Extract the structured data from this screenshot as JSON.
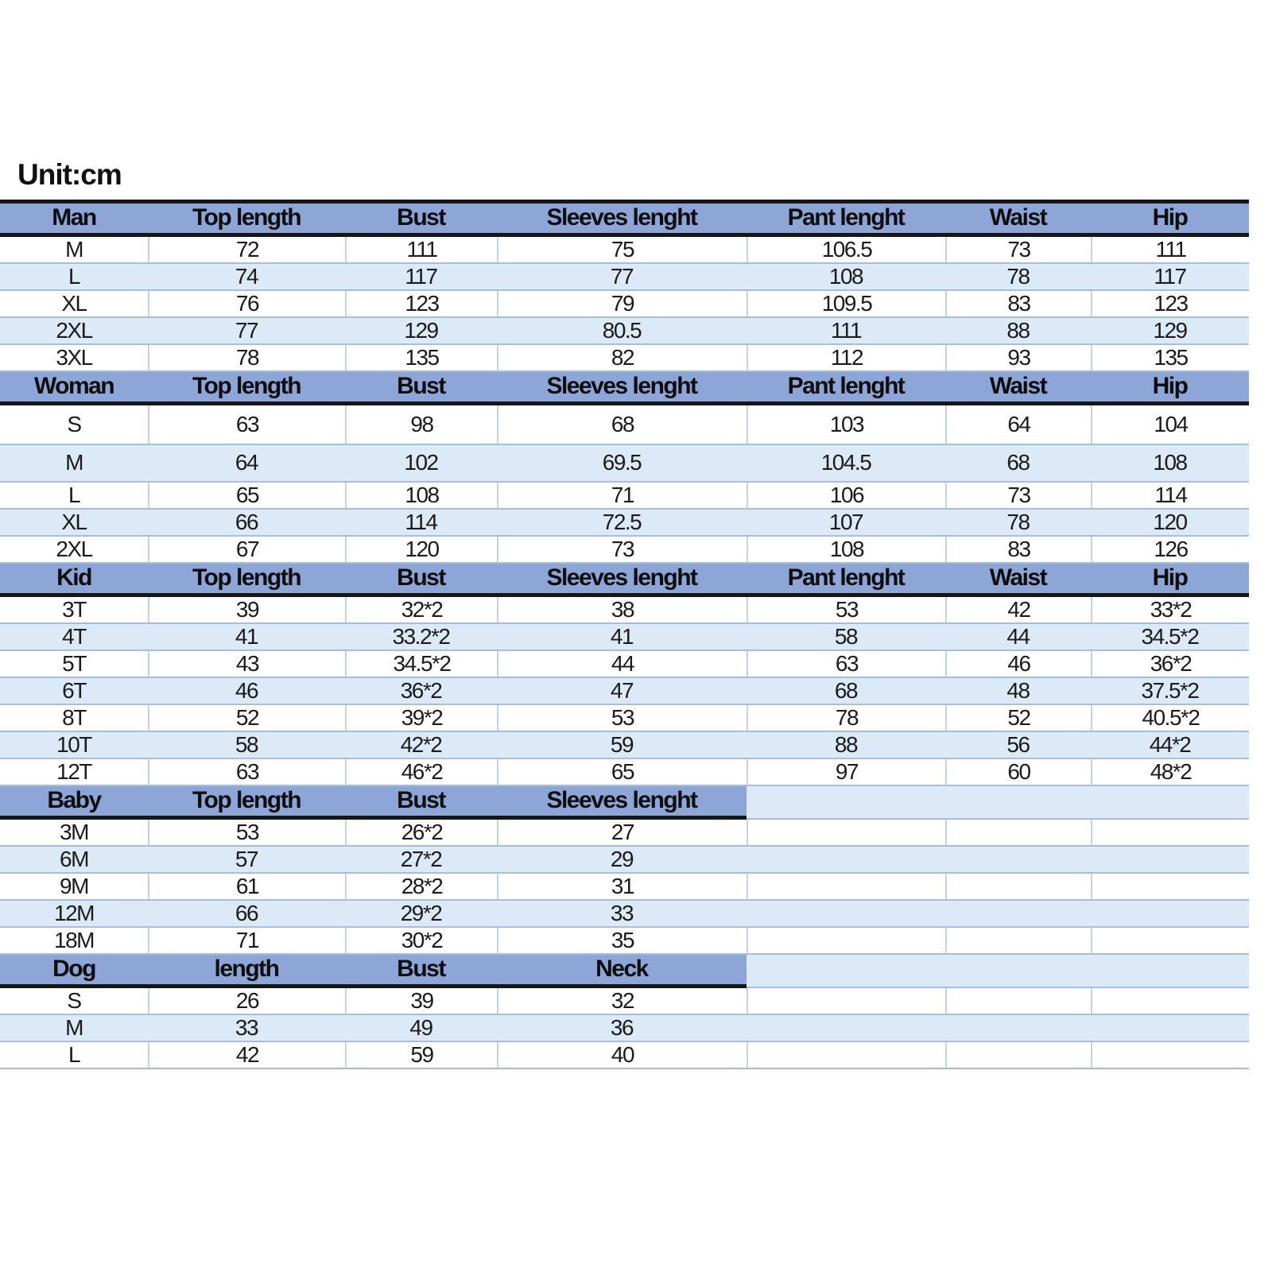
{
  "unit_label": "Unit:cm",
  "colors": {
    "header_bg": "#8da5d7",
    "row_alt_bg": "#dce9f6",
    "row_bg": "#ffffff",
    "grid_line": "#a6bedd",
    "section_border": "#161616",
    "text": "#1b1b1b"
  },
  "sections": [
    {
      "name": "Man",
      "headers": [
        "Man",
        "Top length",
        "Bust",
        "Sleeves lenght",
        "Pant lenght",
        "Waist",
        "Hip"
      ],
      "rows": [
        [
          "M",
          "72",
          "111",
          "75",
          "106.5",
          "73",
          "111"
        ],
        [
          "L",
          "74",
          "117",
          "77",
          "108",
          "78",
          "117"
        ],
        [
          "XL",
          "76",
          "123",
          "79",
          "109.5",
          "83",
          "123"
        ],
        [
          "2XL",
          "77",
          "129",
          "80.5",
          "111",
          "88",
          "129"
        ],
        [
          "3XL",
          "78",
          "135",
          "82",
          "112",
          "93",
          "135"
        ]
      ]
    },
    {
      "name": "Woman",
      "headers": [
        "Woman",
        "Top length",
        "Bust",
        "Sleeves lenght",
        "Pant lenght",
        "Waist",
        "Hip"
      ],
      "rows": [
        [
          "S",
          "63",
          "98",
          "68",
          "103",
          "64",
          "104"
        ],
        [
          "M",
          "64",
          "102",
          "69.5",
          "104.5",
          "68",
          "108"
        ],
        [
          "L",
          "65",
          "108",
          "71",
          "106",
          "73",
          "114"
        ],
        [
          "XL",
          "66",
          "114",
          "72.5",
          "107",
          "78",
          "120"
        ],
        [
          "2XL",
          "67",
          "120",
          "73",
          "108",
          "83",
          "126"
        ]
      ]
    },
    {
      "name": "Kid",
      "headers": [
        "Kid",
        "Top length",
        "Bust",
        "Sleeves lenght",
        "Pant lenght",
        "Waist",
        "Hip"
      ],
      "rows": [
        [
          "3T",
          "39",
          "32*2",
          "38",
          "53",
          "42",
          "33*2"
        ],
        [
          "4T",
          "41",
          "33.2*2",
          "41",
          "58",
          "44",
          "34.5*2"
        ],
        [
          "5T",
          "43",
          "34.5*2",
          "44",
          "63",
          "46",
          "36*2"
        ],
        [
          "6T",
          "46",
          "36*2",
          "47",
          "68",
          "48",
          "37.5*2"
        ],
        [
          "8T",
          "52",
          "39*2",
          "53",
          "78",
          "52",
          "40.5*2"
        ],
        [
          "10T",
          "58",
          "42*2",
          "59",
          "88",
          "56",
          "44*2"
        ],
        [
          "12T",
          "63",
          "46*2",
          "65",
          "97",
          "60",
          "48*2"
        ]
      ]
    },
    {
      "name": "Baby",
      "headers": [
        "Baby",
        "Top length",
        "Bust",
        "Sleeves lenght"
      ],
      "rows": [
        [
          "3M",
          "53",
          "26*2",
          "27"
        ],
        [
          "6M",
          "57",
          "27*2",
          "29"
        ],
        [
          "9M",
          "61",
          "28*2",
          "31"
        ],
        [
          "12M",
          "66",
          "29*2",
          "33"
        ],
        [
          "18M",
          "71",
          "30*2",
          "35"
        ]
      ]
    },
    {
      "name": "Dog",
      "headers": [
        "Dog",
        "length",
        "Bust",
        "Neck"
      ],
      "rows": [
        [
          "S",
          "26",
          "39",
          "32"
        ],
        [
          "M",
          "33",
          "49",
          "36"
        ],
        [
          "L",
          "42",
          "59",
          "40"
        ]
      ]
    }
  ]
}
